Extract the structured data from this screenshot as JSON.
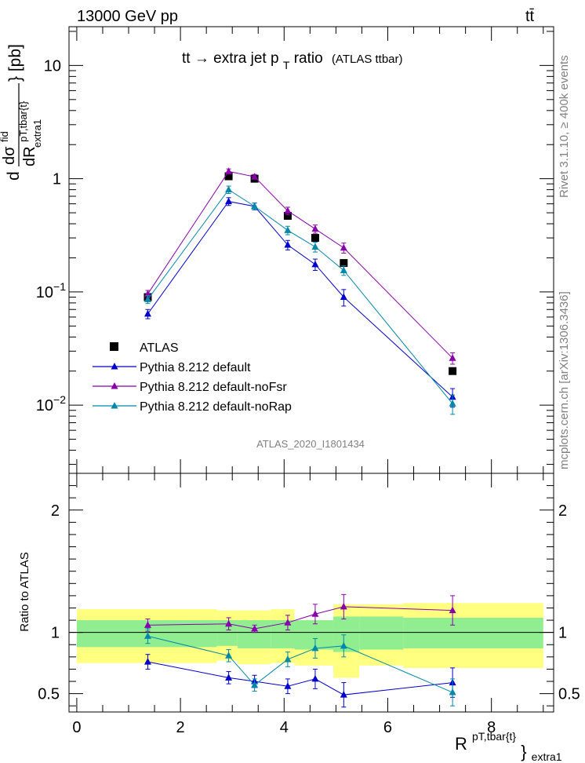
{
  "header": {
    "left": "13000 GeV pp",
    "right": "tt̄"
  },
  "side_labels": {
    "rivet": "Rivet 3.1.10, ≥ 400k events",
    "mcplots": "mcplots.cern.ch [arXiv:1306.3436]"
  },
  "chart_data": [
    {
      "type": "scatter",
      "panel": "main",
      "title_main": "tt",
      "title_arrow": "→",
      "title_rest": " extra jet p",
      "title_sub": "T",
      "title_tail": " ratio",
      "title_small": "(ATLAS ttbar)",
      "analysis_tag": "ATLAS_2020_I1801434",
      "ylabel": {
        "d": "d",
        "num": "dσ",
        "num_sup": "fid",
        "den": "dR",
        "den_sup": "pT,tbar{t}",
        "den_sub": "extra1",
        "unit": "} [pb]"
      },
      "yscale": "log",
      "ylim": [
        0.0025,
        22
      ],
      "xlim": [
        -0.15,
        9.2
      ],
      "yticks": [
        {
          "value": 10,
          "label": "10"
        },
        {
          "value": 1,
          "label": "1"
        },
        {
          "value": 0.1,
          "label": "10",
          "exp": "−1"
        },
        {
          "value": 0.01,
          "label": "10",
          "exp": "−2"
        }
      ],
      "legend_position": "lower-left",
      "series": [
        {
          "name": "ATLAS",
          "color": "#000000",
          "marker": "square",
          "x": [
            1.37,
            2.93,
            3.43,
            4.07,
            4.6,
            5.15,
            7.25
          ],
          "y": [
            0.09,
            1.05,
            1.0,
            0.47,
            0.3,
            0.18,
            0.02
          ]
        },
        {
          "name": "Pythia 8.212 default",
          "color": "#0000cc",
          "marker": "triangle",
          "x": [
            1.37,
            2.93,
            3.43,
            4.07,
            4.6,
            5.15,
            7.25
          ],
          "y": [
            0.064,
            0.63,
            0.57,
            0.26,
            0.175,
            0.09,
            0.0118
          ],
          "err": [
            0.006,
            0.05,
            0.04,
            0.025,
            0.02,
            0.015,
            0.0022
          ]
        },
        {
          "name": "Pythia 8.212 default-noFsr",
          "color": "#8800aa",
          "marker": "triangle",
          "x": [
            1.37,
            2.93,
            3.43,
            4.07,
            4.6,
            5.15,
            7.25
          ],
          "y": [
            0.096,
            1.16,
            1.04,
            0.52,
            0.36,
            0.245,
            0.026
          ],
          "err": [
            0.007,
            0.06,
            0.05,
            0.04,
            0.03,
            0.025,
            0.003
          ]
        },
        {
          "name": "Pythia 8.212 default-noRap",
          "color": "#0088aa",
          "marker": "triangle",
          "x": [
            1.37,
            2.93,
            3.43,
            4.07,
            4.6,
            5.15,
            7.25
          ],
          "y": [
            0.086,
            0.8,
            0.57,
            0.35,
            0.25,
            0.155,
            0.0103
          ],
          "err": [
            0.007,
            0.06,
            0.04,
            0.03,
            0.025,
            0.015,
            0.002
          ]
        }
      ]
    },
    {
      "type": "scatter",
      "panel": "ratio",
      "ylabel": "Ratio to ATLAS",
      "xlabel": {
        "base": "R",
        "sup": "pT,tbar{t}",
        "close": "}",
        "sub": "extra1"
      },
      "ylim": [
        0.35,
        2.3
      ],
      "xlim": [
        -0.15,
        9.2
      ],
      "xticks": [
        0,
        2,
        4,
        6,
        8
      ],
      "yticks": [
        0.5,
        1,
        2
      ],
      "bands": {
        "yellow_color": "#ffff80",
        "green_color": "#90ee90",
        "edges": [
          0,
          2.7,
          3.1,
          3.75,
          4.2,
          4.95,
          5.45,
          6.3,
          9.0
        ],
        "yellow_lo": [
          0.75,
          0.77,
          0.74,
          0.75,
          0.73,
          0.63,
          0.73,
          0.71
        ],
        "yellow_hi": [
          1.19,
          1.18,
          1.18,
          1.19,
          1.1,
          1.23,
          1.23,
          1.24
        ],
        "green_lo": [
          0.88,
          0.89,
          0.87,
          0.87,
          0.86,
          0.84,
          0.86,
          0.87
        ],
        "green_hi": [
          1.1,
          1.1,
          1.1,
          1.1,
          1.1,
          1.13,
          1.13,
          1.12
        ]
      },
      "series": [
        {
          "name": "Pythia 8.212 default",
          "color": "#0000cc",
          "x": [
            1.37,
            2.93,
            3.43,
            4.07,
            4.6,
            5.15,
            7.25
          ],
          "y": [
            0.76,
            0.63,
            0.6,
            0.56,
            0.62,
            0.49,
            0.59
          ],
          "err": [
            0.06,
            0.05,
            0.05,
            0.06,
            0.08,
            0.1,
            0.12
          ]
        },
        {
          "name": "Pythia 8.212 default-noFsr",
          "color": "#8800aa",
          "x": [
            1.37,
            2.93,
            3.43,
            4.07,
            4.6,
            5.15,
            7.25
          ],
          "y": [
            1.06,
            1.07,
            1.03,
            1.08,
            1.15,
            1.21,
            1.18
          ],
          "err": [
            0.05,
            0.05,
            0.03,
            0.06,
            0.08,
            0.1,
            0.12
          ]
        },
        {
          "name": "Pythia 8.212 default-noRap",
          "color": "#0088aa",
          "x": [
            1.37,
            2.93,
            3.43,
            4.07,
            4.6,
            5.15,
            7.25
          ],
          "y": [
            0.97,
            0.81,
            0.57,
            0.78,
            0.87,
            0.89,
            0.51
          ],
          "err": [
            0.06,
            0.05,
            0.05,
            0.06,
            0.08,
            0.09,
            0.11
          ]
        }
      ]
    }
  ]
}
